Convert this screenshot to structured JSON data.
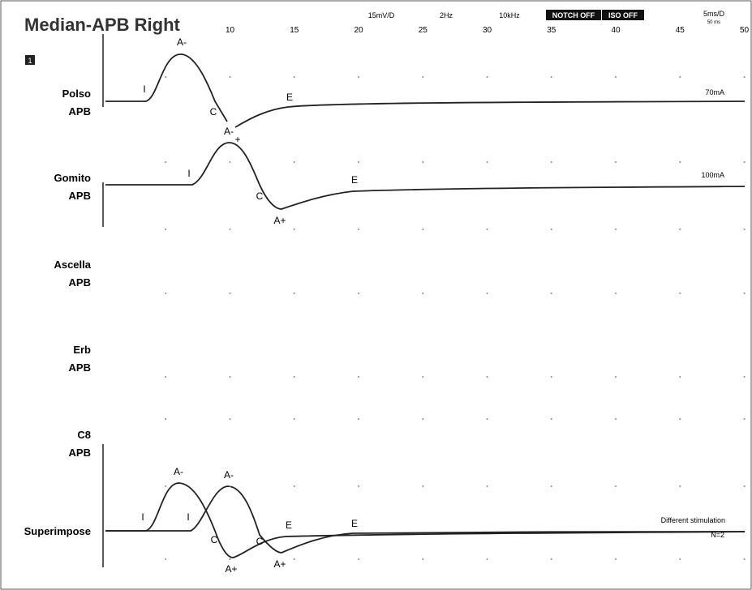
{
  "header": {
    "title": "Median-APB Right",
    "page": "1",
    "settings": [
      "15mV/D",
      "2Hz",
      "10kHz"
    ],
    "badges": [
      "NOTCH OFF",
      "ISO OFF"
    ],
    "timebase": "5ms/D",
    "sweep": "50 ms"
  },
  "x_axis": {
    "ticks": [
      10,
      15,
      20,
      25,
      30,
      35,
      40,
      45,
      50
    ]
  },
  "channels": [
    {
      "site": "Polso",
      "muscle": "APB",
      "note": "70mA",
      "markers": [
        "I",
        "A-",
        "C",
        "E"
      ]
    },
    {
      "site": "Gomito",
      "muscle": "APB",
      "note": "100mA",
      "markers": [
        "I",
        "A-",
        "+",
        "C",
        "A+",
        "E"
      ]
    },
    {
      "site": "Ascella",
      "muscle": "APB"
    },
    {
      "site": "Erb",
      "muscle": "APB"
    },
    {
      "site": "C8",
      "muscle": "APB"
    }
  ],
  "superimpose": {
    "label": "Superimpose",
    "note": "Different stimulation",
    "count": "N=2",
    "markers": [
      "I",
      "A-",
      "C",
      "A+",
      "E",
      "I",
      "A-",
      "C",
      "A+",
      "E"
    ]
  }
}
